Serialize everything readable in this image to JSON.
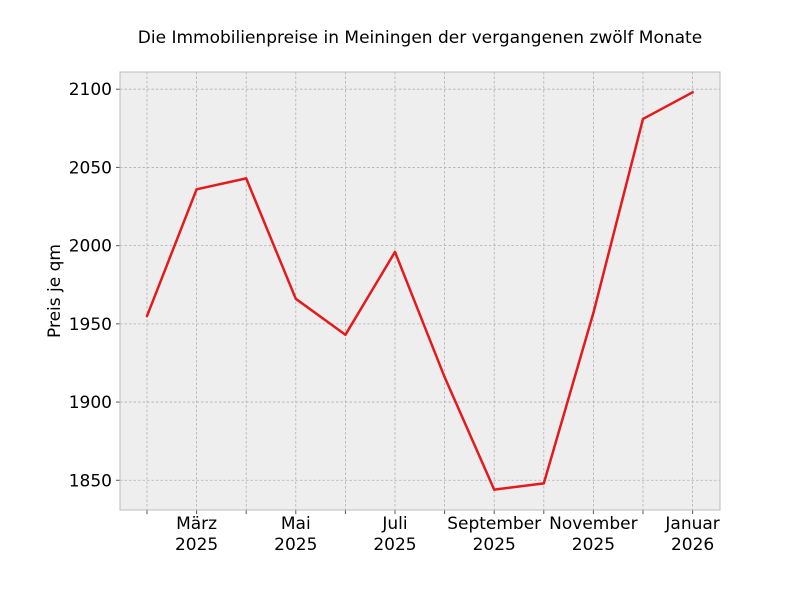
{
  "chart_data": {
    "type": "line",
    "title": "Die Immobilienpreise in Meiningen der vergangenen zwölf Monate",
    "xlabel": "",
    "ylabel": "Preis je qm",
    "x": [
      "2025-02",
      "2025-03",
      "2025-04",
      "2025-05",
      "2025-06",
      "2025-07",
      "2025-08",
      "2025-09",
      "2025-10",
      "2025-11",
      "2025-12",
      "2026-01"
    ],
    "series": [
      {
        "values": [
          1955,
          2036,
          2043,
          1966,
          1943,
          1996,
          1916,
          1844,
          1848,
          1957,
          2081,
          2098
        ]
      }
    ],
    "ylim": [
      1831,
      2111
    ],
    "yticks": [
      1850,
      1900,
      1950,
      2000,
      2050,
      2100
    ],
    "xtick_labels": [
      {
        "x": "2025-03",
        "month": "März",
        "year": "2025"
      },
      {
        "x": "2025-05",
        "month": "Mai",
        "year": "2025"
      },
      {
        "x": "2025-07",
        "month": "Juli",
        "year": "2025"
      },
      {
        "x": "2025-09",
        "month": "September",
        "year": "2025"
      },
      {
        "x": "2025-11",
        "month": "November",
        "year": "2025"
      },
      {
        "x": "2026-01",
        "month": "Januar",
        "year": "2026"
      }
    ],
    "grid": true,
    "line_color": "#e41a1c",
    "background_color": "#eeeeee",
    "grid_color": "#b0b0b0"
  }
}
